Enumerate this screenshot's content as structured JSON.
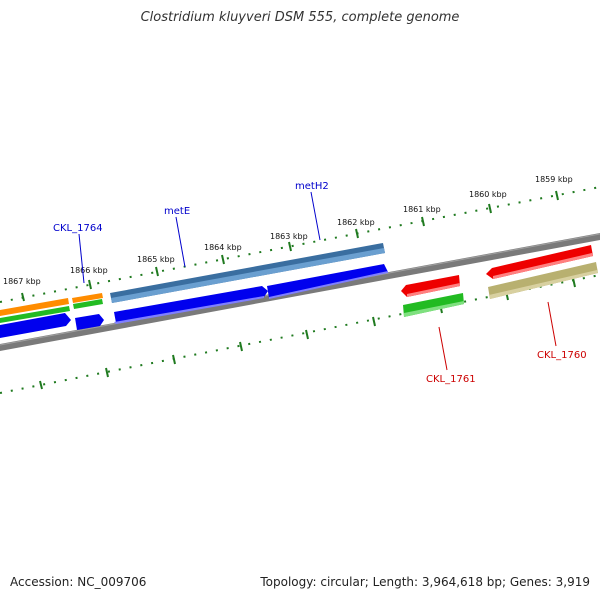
{
  "title": "Clostridium kluyveri DSM 555, complete genome",
  "accession": "Accession: NC_009706",
  "info": "Topology: circular; Length: 3,964,618 bp; Genes: 3,919",
  "ticks": [
    {
      "label": "1867 kbp",
      "id": "tick-1867"
    },
    {
      "label": "1866 kbp",
      "id": "tick-1866"
    },
    {
      "label": "1865 kbp",
      "id": "tick-1865"
    },
    {
      "label": "1864 kbp",
      "id": "tick-1864"
    },
    {
      "label": "1863 kbp",
      "id": "tick-1863"
    },
    {
      "label": "1862 kbp",
      "id": "tick-1862"
    },
    {
      "label": "1861 kbp",
      "id": "tick-1861"
    },
    {
      "label": "1860 kbp",
      "id": "tick-1860"
    },
    {
      "label": "1859 kbp",
      "id": "tick-1859"
    }
  ],
  "gene_labels": [
    {
      "label": "CKL_1764",
      "color": "#0000cc"
    },
    {
      "label": "metE",
      "color": "#0000cc"
    },
    {
      "label": "metH2",
      "color": "#0000cc"
    },
    {
      "label": "CKL_1761",
      "color": "#cc0000"
    },
    {
      "label": "CKL_1760",
      "color": "#cc0000"
    }
  ],
  "colors": {
    "backbone": "#808080",
    "tick": "#1f7a1f",
    "cds_blue": "#0000ee",
    "gene_steelblue": "#4a7fb5",
    "orange": "#ff8c00",
    "green": "#22bb22",
    "red": "#ee0000",
    "khaki": "#b8b070"
  }
}
